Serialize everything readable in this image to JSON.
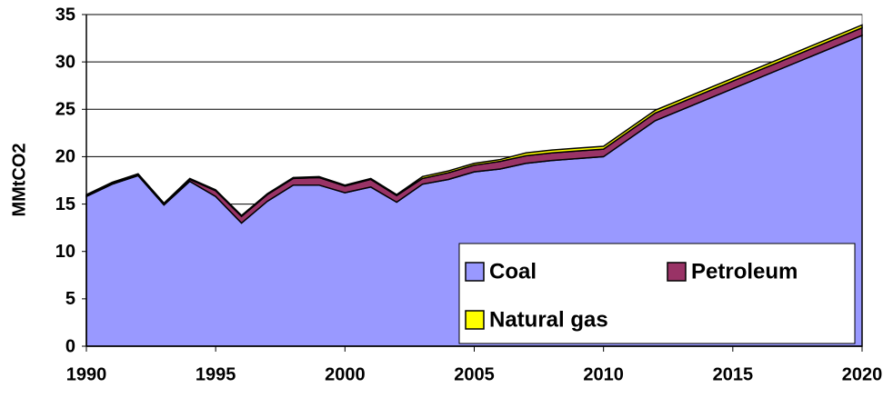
{
  "chart_data": {
    "type": "area",
    "stacked": true,
    "y_label": "MMtCO2",
    "x": [
      1990,
      1991,
      1992,
      1993,
      1994,
      1995,
      1996,
      1997,
      1998,
      1999,
      2000,
      2001,
      2002,
      2003,
      2004,
      2005,
      2006,
      2007,
      2008,
      2009,
      2010,
      2012,
      2020
    ],
    "series": [
      {
        "name": "Coal",
        "color": "#9999ff",
        "values": [
          15.8,
          17.1,
          18.0,
          14.9,
          17.4,
          15.8,
          13.0,
          15.3,
          17.0,
          17.0,
          16.2,
          16.8,
          15.2,
          17.1,
          17.6,
          18.4,
          18.7,
          19.3,
          19.6,
          19.8,
          20.0,
          23.8,
          32.8
        ]
      },
      {
        "name": "Petroleum",
        "color": "#993366",
        "values": [
          0.1,
          0.1,
          0.1,
          0.1,
          0.2,
          0.6,
          0.7,
          0.7,
          0.7,
          0.8,
          0.7,
          0.8,
          0.7,
          0.6,
          0.7,
          0.7,
          0.8,
          0.8,
          0.8,
          0.8,
          0.8,
          0.8,
          0.8
        ]
      },
      {
        "name": "Natural gas",
        "color": "#ffff00",
        "values": [
          0.1,
          0.1,
          0.1,
          0.1,
          0.1,
          0.1,
          0.1,
          0.1,
          0.1,
          0.1,
          0.1,
          0.1,
          0.1,
          0.2,
          0.2,
          0.2,
          0.2,
          0.3,
          0.3,
          0.3,
          0.3,
          0.3,
          0.3
        ]
      }
    ],
    "xlim": [
      1990,
      2020
    ],
    "xticks": [
      1990,
      1995,
      2000,
      2005,
      2010,
      2015,
      2020
    ],
    "ylim": [
      0,
      35
    ],
    "yticks": [
      0,
      5,
      10,
      15,
      20,
      25,
      30,
      35
    ],
    "grid": true,
    "legend": "lower right"
  }
}
